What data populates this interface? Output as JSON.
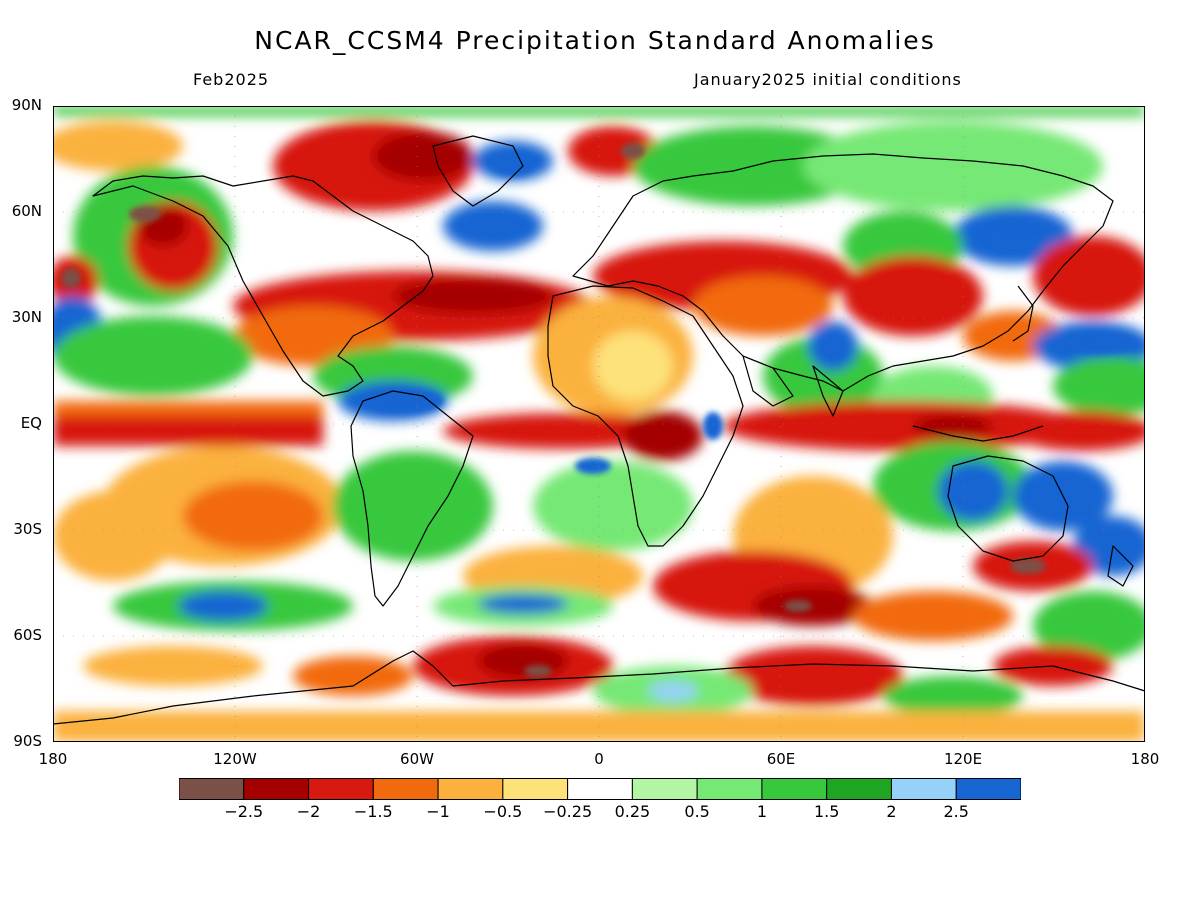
{
  "title": "NCAR_CCSM4 Precipitation Standard Anomalies",
  "subtitle_left": "Feb2025",
  "subtitle_right": "January2025 initial conditions",
  "lat_labels": [
    "90N",
    "60N",
    "30N",
    "EQ",
    "30S",
    "60S",
    "90S"
  ],
  "lon_labels": [
    "180",
    "120W",
    "60W",
    "0",
    "60E",
    "120E",
    "180"
  ],
  "colorbar": {
    "colors": [
      "#7b5047",
      "#a50000",
      "#d7190f",
      "#f26a0e",
      "#fbb13c",
      "#fde27a",
      "#ffffff",
      "#b4f5a4",
      "#76e874",
      "#38c83c",
      "#1ea622",
      "#96d1f8",
      "#1765d3"
    ],
    "labels": [
      "−2.5",
      "−2",
      "−1.5",
      "−1",
      "−0.5",
      "−0.25",
      "0.25",
      "0.5",
      "1",
      "1.5",
      "2",
      "2.5"
    ]
  }
}
